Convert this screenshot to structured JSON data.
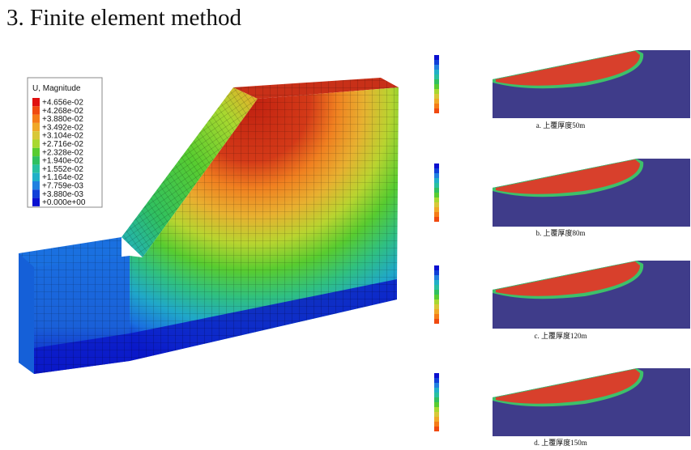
{
  "title": "3. Finite element method",
  "legend": {
    "title": "U, Magnitude",
    "values": [
      "+4.656e-02",
      "+4.268e-02",
      "+3.880e-02",
      "+3.492e-02",
      "+3.104e-02",
      "+2.716e-02",
      "+2.328e-02",
      "+1.940e-02",
      "+1.552e-02",
      "+1.164e-02",
      "+7.759e-03",
      "+3.880e-03",
      "+0.000e+00"
    ],
    "colors": [
      "#e01010",
      "#f04a10",
      "#f57c18",
      "#f0a828",
      "#d8c838",
      "#a8d830",
      "#58cc30",
      "#30c060",
      "#28c0a0",
      "#20b0c8",
      "#2080e0",
      "#1040d8",
      "#0a10d0"
    ]
  },
  "panels": [
    {
      "caption": "a. 上覆厚度50m"
    },
    {
      "caption": "b. 上覆厚度80m"
    },
    {
      "caption": "c. 上覆厚度120m"
    },
    {
      "caption": "d. 上覆厚度150m"
    }
  ],
  "colors": {
    "background": "#ffffff",
    "panel_bg": "#3f3c8a",
    "high": "#d8402c",
    "mid": "#3ec06a",
    "low": "#2a7fbf"
  }
}
